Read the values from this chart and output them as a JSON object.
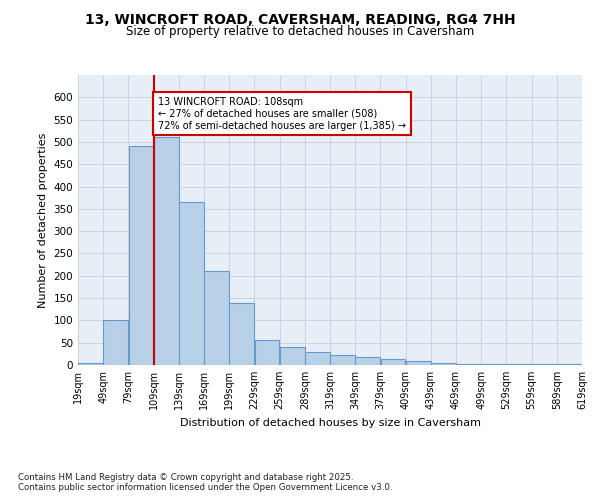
{
  "title_line1": "13, WINCROFT ROAD, CAVERSHAM, READING, RG4 7HH",
  "title_line2": "Size of property relative to detached houses in Caversham",
  "xlabel": "Distribution of detached houses by size in Caversham",
  "ylabel": "Number of detached properties",
  "bin_edges": [
    19,
    49,
    79,
    109,
    139,
    169,
    199,
    229,
    259,
    289,
    319,
    349,
    379,
    409,
    439,
    469,
    499,
    529,
    559,
    589,
    619
  ],
  "counts": [
    4,
    100,
    490,
    510,
    365,
    210,
    140,
    55,
    40,
    30,
    22,
    18,
    14,
    10,
    4,
    2,
    2,
    2,
    2,
    2
  ],
  "bar_color": "#b8d0e8",
  "bar_edge_color": "#6699cc",
  "reference_line_x": 109,
  "annotation_text": "13 WINCROFT ROAD: 108sqm\n← 27% of detached houses are smaller (508)\n72% of semi-detached houses are larger (1,385) →",
  "annotation_box_color": "#ffffff",
  "annotation_border_color": "#cc0000",
  "reference_line_color": "#cc0000",
  "grid_color": "#c8d4e4",
  "background_color": "#e8eef6",
  "footer_text": "Contains HM Land Registry data © Crown copyright and database right 2025.\nContains public sector information licensed under the Open Government Licence v3.0.",
  "ylim": [
    0,
    650
  ],
  "yticks": [
    0,
    50,
    100,
    150,
    200,
    250,
    300,
    350,
    400,
    450,
    500,
    550,
    600
  ],
  "figwidth": 6.0,
  "figheight": 5.0,
  "dpi": 100
}
